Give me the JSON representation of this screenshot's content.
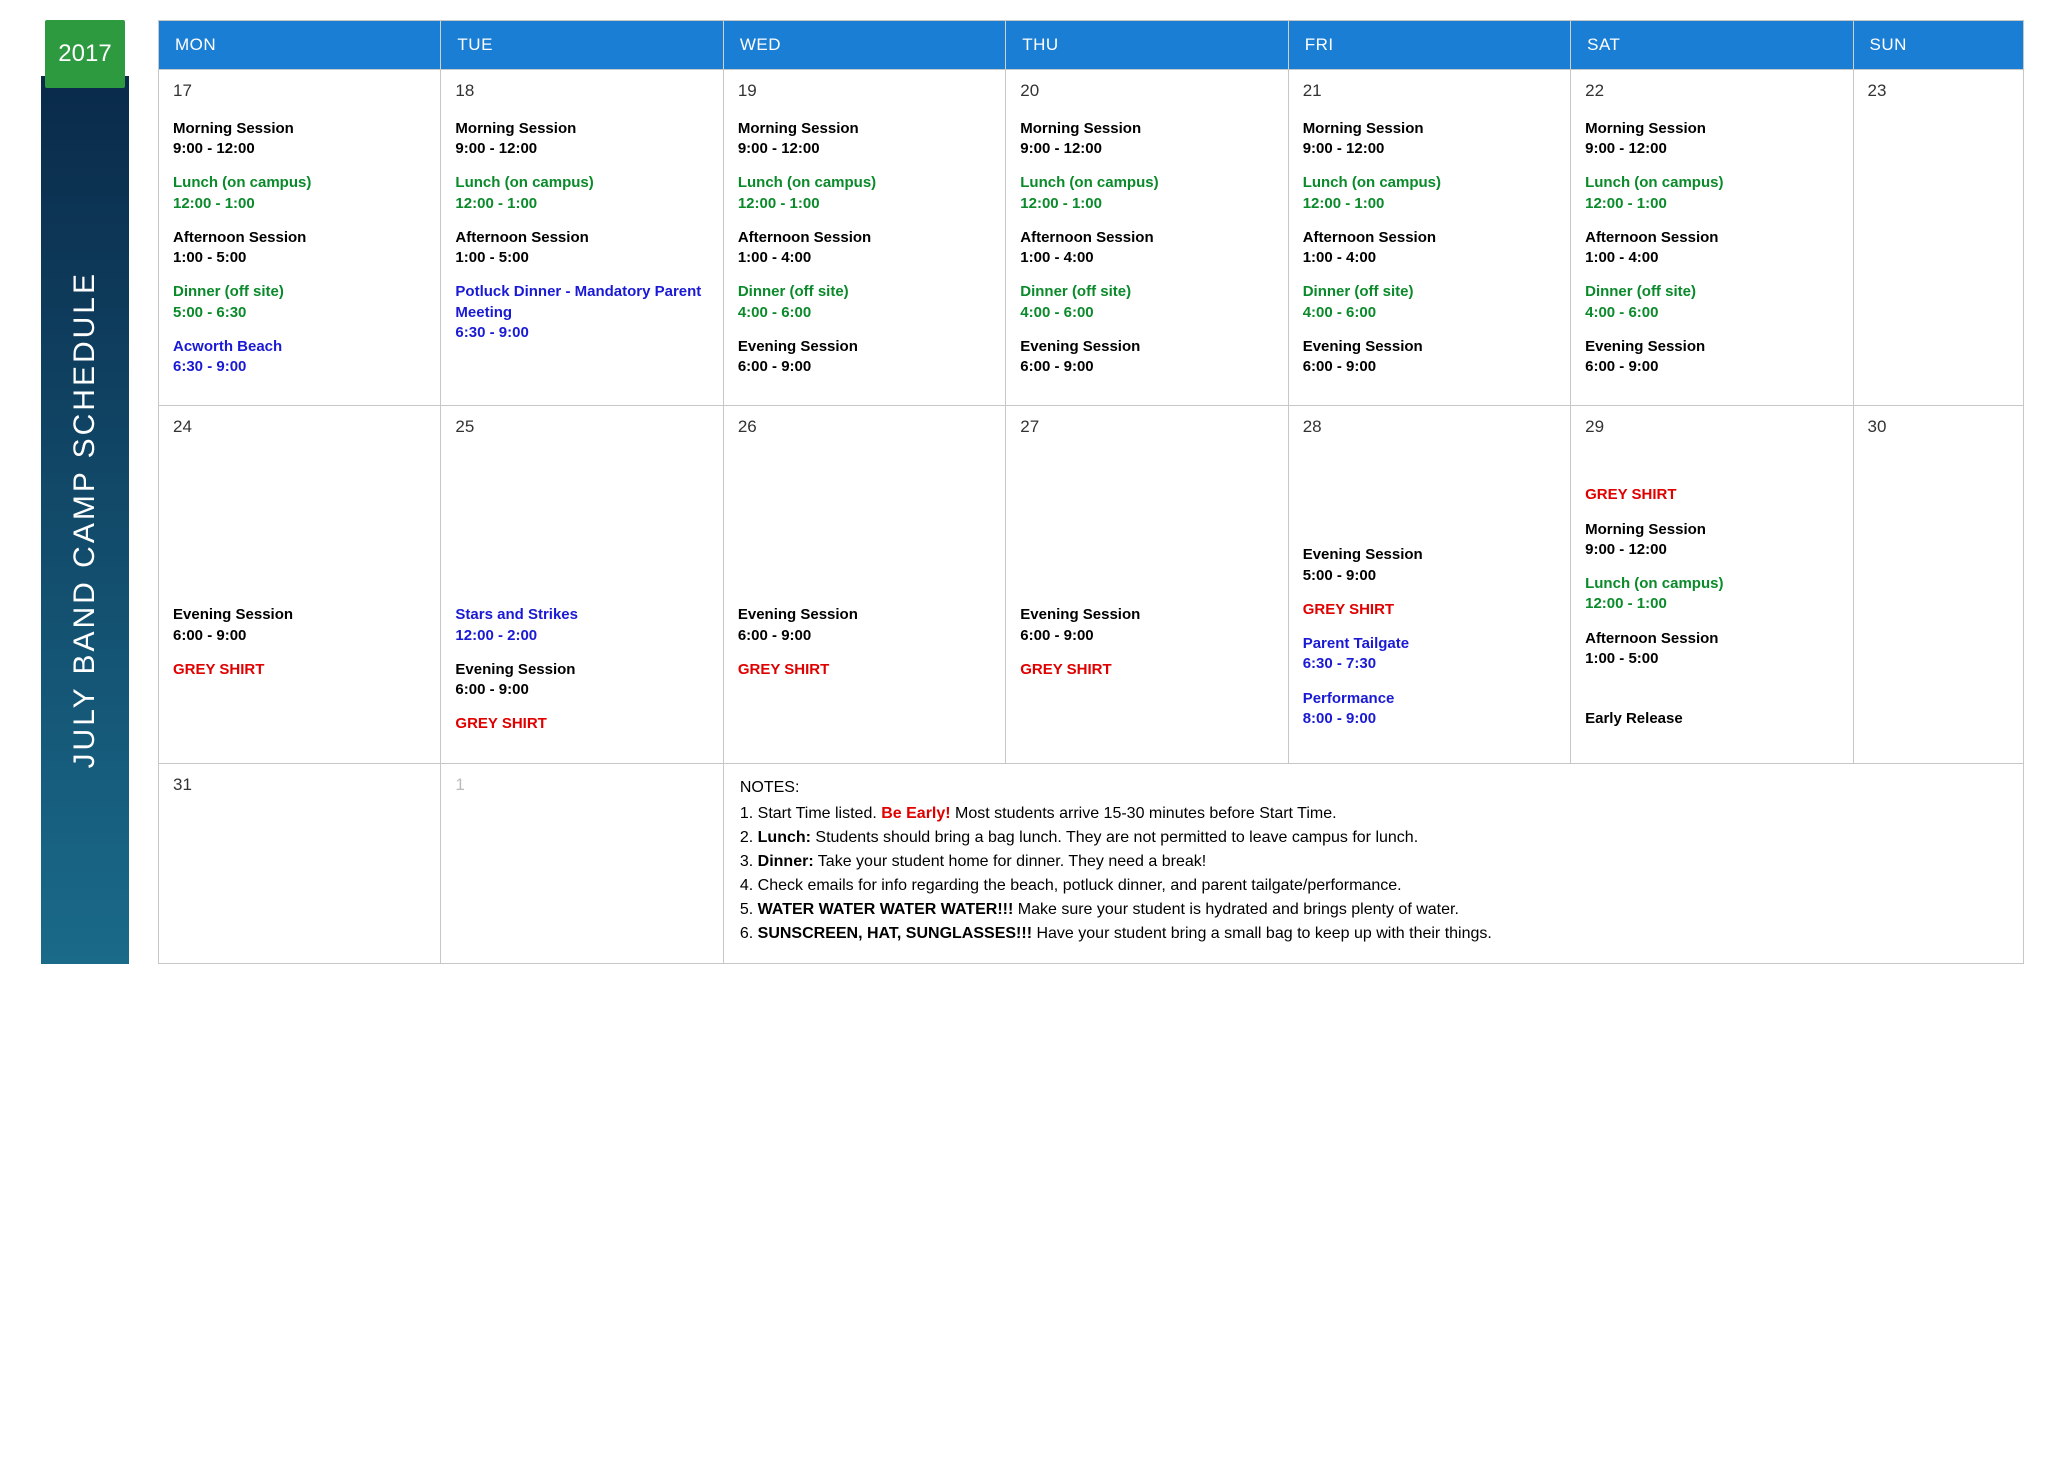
{
  "colors": {
    "header_bg": "#1a7fd4",
    "year_bg": "#2d9a3f",
    "sidebar_gradient_top": "#0a2a4a",
    "sidebar_gradient_bottom": "#1a6a8a",
    "border": "#c7c7c7",
    "black": "#000000",
    "green": "#0a8a2a",
    "blue": "#1a1ad4",
    "red": "#e00000"
  },
  "year": "2017",
  "title": "JULY BAND CAMP SCHEDULE",
  "day_headers": [
    "MON",
    "TUE",
    "WED",
    "THU",
    "FRI",
    "SAT",
    "SUN"
  ],
  "weeks": [
    {
      "cells": [
        {
          "day": "17",
          "events": [
            {
              "text": "Morning Session",
              "time": "9:00 - 12:00",
              "cls": "ev-black"
            },
            {
              "text": "Lunch (on campus)",
              "time": "12:00 - 1:00",
              "cls": "ev-green"
            },
            {
              "text": "Afternoon Session",
              "time": "1:00 - 5:00",
              "cls": "ev-black"
            },
            {
              "text": "Dinner (off site)",
              "time": "5:00 - 6:30",
              "cls": "ev-green"
            },
            {
              "text": "Acworth Beach",
              "time": "6:30 - 9:00",
              "cls": "ev-blue"
            }
          ]
        },
        {
          "day": "18",
          "events": [
            {
              "text": "Morning Session",
              "time": "9:00 - 12:00",
              "cls": "ev-black",
              "pad_top": true
            },
            {
              "text": "Lunch (on campus)",
              "time": "12:00 - 1:00",
              "cls": "ev-green"
            },
            {
              "text": "Afternoon Session",
              "time": "1:00 - 5:00",
              "cls": "ev-black"
            },
            {
              "text": "Potluck Dinner - Mandatory Parent Meeting",
              "time": "6:30 - 9:00",
              "cls": "ev-blue"
            }
          ]
        },
        {
          "day": "19",
          "events": [
            {
              "text": "Morning Session",
              "time": "9:00 - 12:00",
              "cls": "ev-black"
            },
            {
              "text": "Lunch (on campus)",
              "time": "12:00 - 1:00",
              "cls": "ev-green"
            },
            {
              "text": "Afternoon Session",
              "time": "1:00 - 4:00",
              "cls": "ev-black"
            },
            {
              "text": "Dinner (off site)",
              "time": "4:00 - 6:00",
              "cls": "ev-green"
            },
            {
              "text": "Evening Session",
              "time": "6:00 - 9:00",
              "cls": "ev-black"
            }
          ]
        },
        {
          "day": "20",
          "events": [
            {
              "text": "Morning Session",
              "time": "9:00 - 12:00",
              "cls": "ev-black"
            },
            {
              "text": "Lunch (on campus)",
              "time": "12:00 - 1:00",
              "cls": "ev-green"
            },
            {
              "text": "Afternoon Session",
              "time": "1:00 - 4:00",
              "cls": "ev-black"
            },
            {
              "text": "Dinner (off site)",
              "time": "4:00 - 6:00",
              "cls": "ev-green"
            },
            {
              "text": "Evening Session",
              "time": "6:00 - 9:00",
              "cls": "ev-black"
            }
          ]
        },
        {
          "day": "21",
          "events": [
            {
              "text": "Morning Session",
              "time": "9:00 - 12:00",
              "cls": "ev-black"
            },
            {
              "text": "Lunch (on campus)",
              "time": "12:00 - 1:00",
              "cls": "ev-green"
            },
            {
              "text": "Afternoon Session",
              "time": "1:00 - 4:00",
              "cls": "ev-black"
            },
            {
              "text": "Dinner (off site)",
              "time": "4:00 - 6:00",
              "cls": "ev-green"
            },
            {
              "text": "Evening Session",
              "time": "6:00 - 9:00",
              "cls": "ev-black"
            }
          ]
        },
        {
          "day": "22",
          "events": [
            {
              "text": "Morning Session",
              "time": "9:00 - 12:00",
              "cls": "ev-black"
            },
            {
              "text": "Lunch (on campus)",
              "time": "12:00 - 1:00",
              "cls": "ev-green"
            },
            {
              "text": "Afternoon Session",
              "time": "1:00 - 4:00",
              "cls": "ev-black"
            },
            {
              "text": "Dinner (off site)",
              "time": "4:00 - 6:00",
              "cls": "ev-green"
            },
            {
              "text": "Evening Session",
              "time": "6:00 - 9:00",
              "cls": "ev-black"
            }
          ]
        },
        {
          "day": "23",
          "events": []
        }
      ]
    },
    {
      "cells": [
        {
          "day": "24",
          "spacer": "big",
          "events": [
            {
              "text": "Evening Session",
              "time": "6:00 - 9:00",
              "cls": "ev-black"
            },
            {
              "text": "GREY SHIRT",
              "cls": "ev-red"
            }
          ]
        },
        {
          "day": "25",
          "spacer": "big",
          "events": [
            {
              "text": "Stars and Strikes",
              "time": "12:00 - 2:00",
              "cls": "ev-blue"
            },
            {
              "text": "Evening Session",
              "time": "6:00 - 9:00",
              "cls": "ev-black"
            },
            {
              "text": "GREY SHIRT",
              "cls": "ev-red"
            }
          ]
        },
        {
          "day": "26",
          "spacer": "big",
          "events": [
            {
              "text": "Evening Session",
              "time": "6:00 - 9:00",
              "cls": "ev-black"
            },
            {
              "text": "GREY SHIRT",
              "cls": "ev-red"
            }
          ]
        },
        {
          "day": "27",
          "spacer": "big",
          "events": [
            {
              "text": "Evening Session",
              "time": "6:00 - 9:00",
              "cls": "ev-black"
            },
            {
              "text": "GREY SHIRT",
              "cls": "ev-red"
            }
          ]
        },
        {
          "day": "28",
          "spacer": "med",
          "events": [
            {
              "text": "Evening Session",
              "time": "5:00 - 9:00",
              "cls": "ev-black"
            },
            {
              "text": "GREY SHIRT",
              "cls": "ev-red"
            },
            {
              "text": "Parent Tailgate",
              "time": "6:30 - 7:30",
              "cls": "ev-blue"
            },
            {
              "text": "Performance",
              "time": "8:00 - 9:00",
              "cls": "ev-blue"
            }
          ]
        },
        {
          "day": "29",
          "spacer": "sm",
          "events": [
            {
              "text": "GREY SHIRT",
              "cls": "ev-red"
            },
            {
              "text": "Morning Session",
              "time": "9:00 - 12:00",
              "cls": "ev-black"
            },
            {
              "text": "Lunch (on campus)",
              "time": "12:00 - 1:00",
              "cls": "ev-green"
            },
            {
              "text": "Afternoon Session",
              "time": "1:00 - 5:00",
              "cls": "ev-black"
            },
            {
              "text": "Early Release",
              "cls": "ev-black",
              "gap_before": true
            }
          ]
        },
        {
          "day": "30",
          "events": []
        }
      ]
    }
  ],
  "last_row": {
    "cells": [
      {
        "day": "31"
      },
      {
        "day": "1",
        "faded": true
      }
    ],
    "notes": {
      "title": "NOTES:",
      "items": [
        {
          "n": "1.",
          "parts": [
            {
              "t": "Start Time listed. "
            },
            {
              "t": "Be Early!",
              "cls": "red-bold"
            },
            {
              "t": " Most students arrive 15-30 minutes before Start Time."
            }
          ]
        },
        {
          "n": "2.",
          "parts": [
            {
              "t": "Lunch:",
              "bold": true
            },
            {
              "t": " Students should bring a bag lunch. They are not permitted to leave campus for lunch."
            }
          ]
        },
        {
          "n": "3.",
          "parts": [
            {
              "t": "Dinner:",
              "bold": true
            },
            {
              "t": " Take your student home for dinner. They need a break!"
            }
          ]
        },
        {
          "n": "4.",
          "parts": [
            {
              "t": "Check emails for info regarding the beach, potluck dinner, and parent tailgate/performance."
            }
          ]
        },
        {
          "n": "5.",
          "parts": [
            {
              "t": "WATER WATER WATER WATER!!!",
              "bold": true
            },
            {
              "t": " Make sure your student is hydrated and brings plenty of water."
            }
          ]
        },
        {
          "n": "6.",
          "parts": [
            {
              "t": "SUNSCREEN, HAT, SUNGLASSES!!!",
              "bold": true
            },
            {
              "t": " Have your student bring a small bag to keep up with their things."
            }
          ]
        }
      ]
    }
  }
}
